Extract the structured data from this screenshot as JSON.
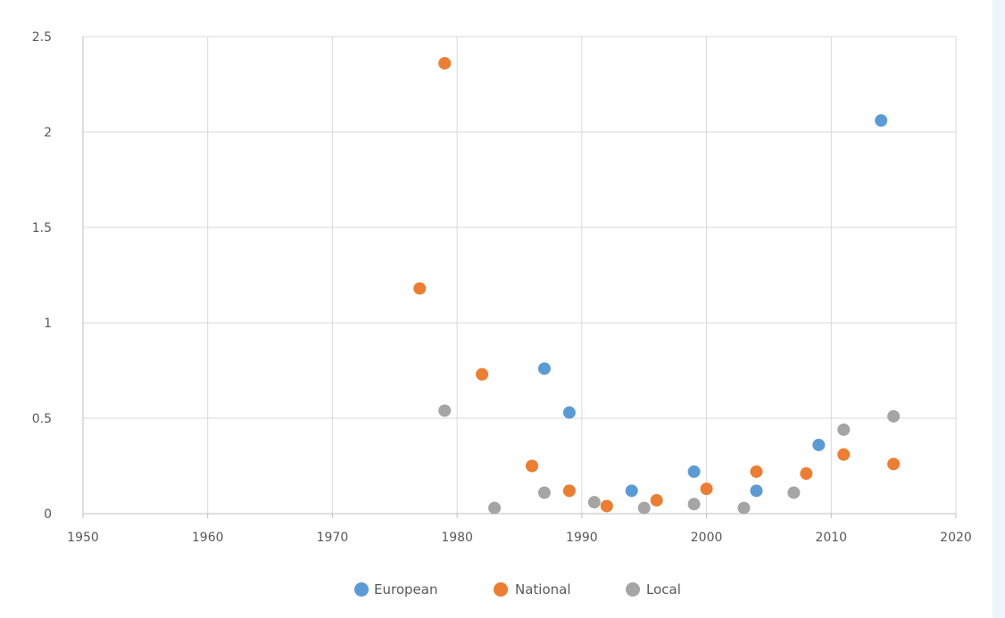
{
  "chart_data": {
    "type": "scatter",
    "title": "",
    "xlabel": "",
    "ylabel": "",
    "xlim": [
      1950,
      2020
    ],
    "ylim": [
      0,
      2.5
    ],
    "x_ticks": [
      1950,
      1960,
      1970,
      1980,
      1990,
      2000,
      2010,
      2020
    ],
    "y_ticks": [
      0,
      0.5,
      1,
      1.5,
      2,
      2.5
    ],
    "x_tick_labels": [
      "1950",
      "1960",
      "1970",
      "1980",
      "1990",
      "2000",
      "2010",
      "2020"
    ],
    "y_tick_labels": [
      "0",
      "0.5",
      "1",
      "1.5",
      "2",
      "2.5"
    ],
    "grid": true,
    "legend_position": "bottom",
    "series": [
      {
        "name": "European",
        "color": "#5b9bd5",
        "points": [
          [
            1987,
            0.76
          ],
          [
            1989,
            0.53
          ],
          [
            1994,
            0.12
          ],
          [
            1999,
            0.22
          ],
          [
            2004,
            0.12
          ],
          [
            2009,
            0.36
          ],
          [
            2014,
            2.06
          ]
        ]
      },
      {
        "name": "National",
        "color": "#ed7d31",
        "points": [
          [
            1977,
            1.18
          ],
          [
            1979,
            2.36
          ],
          [
            1982,
            0.73
          ],
          [
            1986,
            0.25
          ],
          [
            1989,
            0.12
          ],
          [
            1992,
            0.04
          ],
          [
            1996,
            0.07
          ],
          [
            2000,
            0.13
          ],
          [
            2004,
            0.22
          ],
          [
            2008,
            0.21
          ],
          [
            2011,
            0.31
          ],
          [
            2015,
            0.26
          ]
        ]
      },
      {
        "name": "Local",
        "color": "#a5a5a5",
        "points": [
          [
            1979,
            0.54
          ],
          [
            1983,
            0.03
          ],
          [
            1987,
            0.11
          ],
          [
            1991,
            0.06
          ],
          [
            1995,
            0.03
          ],
          [
            1999,
            0.05
          ],
          [
            2003,
            0.03
          ],
          [
            2007,
            0.11
          ],
          [
            2011,
            0.44
          ],
          [
            2015,
            0.51
          ]
        ]
      }
    ]
  }
}
